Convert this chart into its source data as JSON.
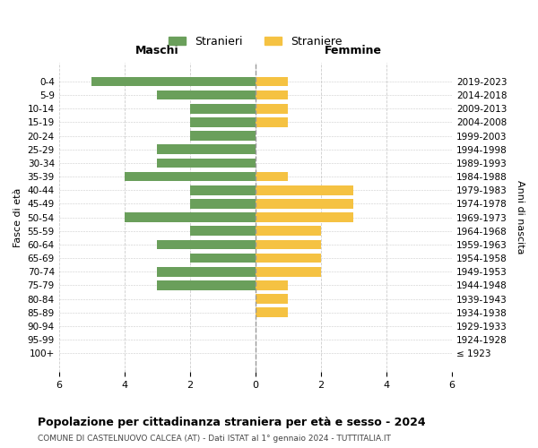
{
  "age_groups": [
    "100+",
    "95-99",
    "90-94",
    "85-89",
    "80-84",
    "75-79",
    "70-74",
    "65-69",
    "60-64",
    "55-59",
    "50-54",
    "45-49",
    "40-44",
    "35-39",
    "30-34",
    "25-29",
    "20-24",
    "15-19",
    "10-14",
    "5-9",
    "0-4"
  ],
  "birth_years": [
    "≤ 1923",
    "1924-1928",
    "1929-1933",
    "1934-1938",
    "1939-1943",
    "1944-1948",
    "1949-1953",
    "1954-1958",
    "1959-1963",
    "1964-1968",
    "1969-1973",
    "1974-1978",
    "1979-1983",
    "1984-1988",
    "1989-1993",
    "1994-1998",
    "1999-2003",
    "2004-2008",
    "2009-2013",
    "2014-2018",
    "2019-2023"
  ],
  "males": [
    0,
    0,
    0,
    0,
    0,
    3,
    3,
    2,
    3,
    2,
    4,
    2,
    2,
    4,
    3,
    3,
    2,
    2,
    2,
    3,
    5
  ],
  "females": [
    0,
    0,
    0,
    1,
    1,
    1,
    2,
    2,
    2,
    2,
    3,
    3,
    3,
    1,
    0,
    0,
    0,
    1,
    1,
    1,
    1
  ],
  "male_color": "#6a9f5b",
  "female_color": "#f5c242",
  "background_color": "#ffffff",
  "grid_color": "#cccccc",
  "center_line_color": "#999999",
  "xlim": 6,
  "title": "Popolazione per cittadinanza straniera per età e sesso - 2024",
  "subtitle": "COMUNE DI CASTELNUOVO CALCEA (AT) - Dati ISTAT al 1° gennaio 2024 - TUTTITALIA.IT",
  "left_header": "Maschi",
  "right_header": "Femmine",
  "ylabel": "Fasce di età",
  "right_ylabel": "Anni di nascita",
  "legend_male": "Stranieri",
  "legend_female": "Straniere"
}
